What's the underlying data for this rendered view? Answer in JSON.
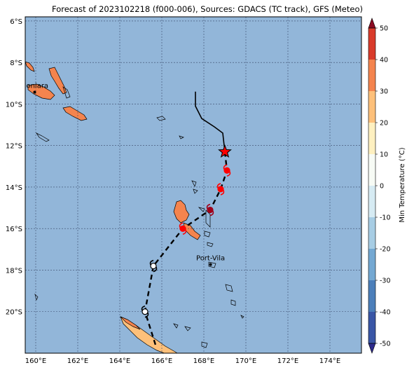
{
  "title": "Forecast of 2023102218 (f000-006), Sources: GDACS (TC track), GFS (Meteo)",
  "map": {
    "lon_range": [
      159.5,
      175.5
    ],
    "lat_range": [
      -22,
      -5.8
    ],
    "lon_ticks": [
      {
        "value": 160,
        "label": "160°E"
      },
      {
        "value": 162,
        "label": "162°E"
      },
      {
        "value": 164,
        "label": "164°E"
      },
      {
        "value": 166,
        "label": "166°E"
      },
      {
        "value": 168,
        "label": "168°E"
      },
      {
        "value": 170,
        "label": "170°E"
      },
      {
        "value": 172,
        "label": "172°E"
      },
      {
        "value": 174,
        "label": "174°E"
      }
    ],
    "lat_ticks": [
      {
        "value": -6,
        "label": "6°S"
      },
      {
        "value": -8,
        "label": "8°S"
      },
      {
        "value": -10,
        "label": "10°S"
      },
      {
        "value": -12,
        "label": "12°S"
      },
      {
        "value": -14,
        "label": "14°S"
      },
      {
        "value": -16,
        "label": "16°S"
      },
      {
        "value": -18,
        "label": "18°S"
      },
      {
        "value": -20,
        "label": "20°S"
      }
    ],
    "grid": true,
    "ocean_color": "#92b6d9",
    "cities": [
      {
        "name": "Honiara",
        "lon": 159.95,
        "lat": -9.43
      },
      {
        "name": "Port-Vila",
        "lon": 168.32,
        "lat": -17.73
      }
    ]
  },
  "track": {
    "past": [
      [
        167.6,
        -9.4
      ],
      [
        167.6,
        -10.1
      ],
      [
        167.9,
        -10.7
      ],
      [
        168.5,
        -11.1
      ],
      [
        168.9,
        -11.4
      ],
      [
        169.0,
        -12.3
      ]
    ],
    "forecast": [
      [
        169.0,
        -12.3
      ],
      [
        169.1,
        -13.2
      ],
      [
        168.8,
        -14.1
      ],
      [
        168.3,
        -15.1
      ],
      [
        167.0,
        -16.0
      ],
      [
        165.6,
        -17.8
      ],
      [
        165.2,
        -20.0
      ],
      [
        165.7,
        -21.6
      ]
    ],
    "current_position": [
      169.0,
      -12.3
    ],
    "points": [
      {
        "lon": 169.1,
        "lat": -13.2,
        "color": "#ff0000"
      },
      {
        "lon": 168.8,
        "lat": -14.1,
        "color": "#ff0000"
      },
      {
        "lon": 168.3,
        "lat": -15.1,
        "color": "#a0001a"
      },
      {
        "lon": 167.0,
        "lat": -16.0,
        "color": "#ff0000"
      },
      {
        "lon": 165.6,
        "lat": -17.8,
        "color": "#ffffff"
      },
      {
        "lon": 165.2,
        "lat": -20.0,
        "color": "#ffffff"
      }
    ]
  },
  "colorbar": {
    "label": "Min Temperature (°C)",
    "min": -50,
    "max": 50,
    "ticks": [
      -50,
      -40,
      -30,
      -20,
      -10,
      0,
      10,
      20,
      30,
      40,
      50
    ],
    "colors": [
      "#2d2a8c",
      "#3a56a6",
      "#4c7fba",
      "#74a8d2",
      "#a7cde4",
      "#d6ebf3",
      "#f7fbf5",
      "#fef0c0",
      "#fdc07a",
      "#f4844e",
      "#d93b2b",
      "#8b0a22"
    ]
  }
}
